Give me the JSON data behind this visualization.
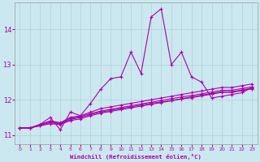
{
  "title": "",
  "xlabel": "Windchill (Refroidissement éolien,°C)",
  "ylabel": "",
  "background_color": "#cbe8f0",
  "line_color": "#aa00aa",
  "ylim": [
    10.75,
    14.75
  ],
  "xlim": [
    -0.5,
    23.5
  ],
  "yticks": [
    11,
    12,
    13,
    14
  ],
  "xticks": [
    0,
    1,
    2,
    3,
    4,
    5,
    6,
    7,
    8,
    9,
    10,
    11,
    12,
    13,
    14,
    15,
    16,
    17,
    18,
    19,
    20,
    21,
    22,
    23
  ],
  "series": [
    [
      11.2,
      11.2,
      11.3,
      11.5,
      11.15,
      11.65,
      11.55,
      11.9,
      12.3,
      12.6,
      12.65,
      13.35,
      12.75,
      14.35,
      14.58,
      13.0,
      13.35,
      12.65,
      12.5,
      12.05,
      12.1,
      12.15,
      12.2,
      12.35
    ],
    [
      11.2,
      11.2,
      11.3,
      11.4,
      11.35,
      11.5,
      11.55,
      11.65,
      11.75,
      11.8,
      11.85,
      11.9,
      11.95,
      12.0,
      12.05,
      12.1,
      12.15,
      12.2,
      12.25,
      12.3,
      12.35,
      12.35,
      12.4,
      12.45
    ],
    [
      11.2,
      11.2,
      11.28,
      11.35,
      11.32,
      11.44,
      11.5,
      11.58,
      11.65,
      11.7,
      11.75,
      11.8,
      11.85,
      11.9,
      11.94,
      11.98,
      12.03,
      12.08,
      12.13,
      12.18,
      12.23,
      12.23,
      12.28,
      12.33
    ],
    [
      11.2,
      11.2,
      11.26,
      11.32,
      11.3,
      11.41,
      11.46,
      11.55,
      11.62,
      11.67,
      11.72,
      11.77,
      11.82,
      11.87,
      11.92,
      11.97,
      12.02,
      12.06,
      12.11,
      12.16,
      12.21,
      12.21,
      12.26,
      12.31
    ],
    [
      11.2,
      11.2,
      11.29,
      11.38,
      11.33,
      11.47,
      11.52,
      11.61,
      11.68,
      11.73,
      11.78,
      11.83,
      11.88,
      11.93,
      11.98,
      12.03,
      12.08,
      12.12,
      12.17,
      12.22,
      12.27,
      12.27,
      12.32,
      12.37
    ]
  ]
}
